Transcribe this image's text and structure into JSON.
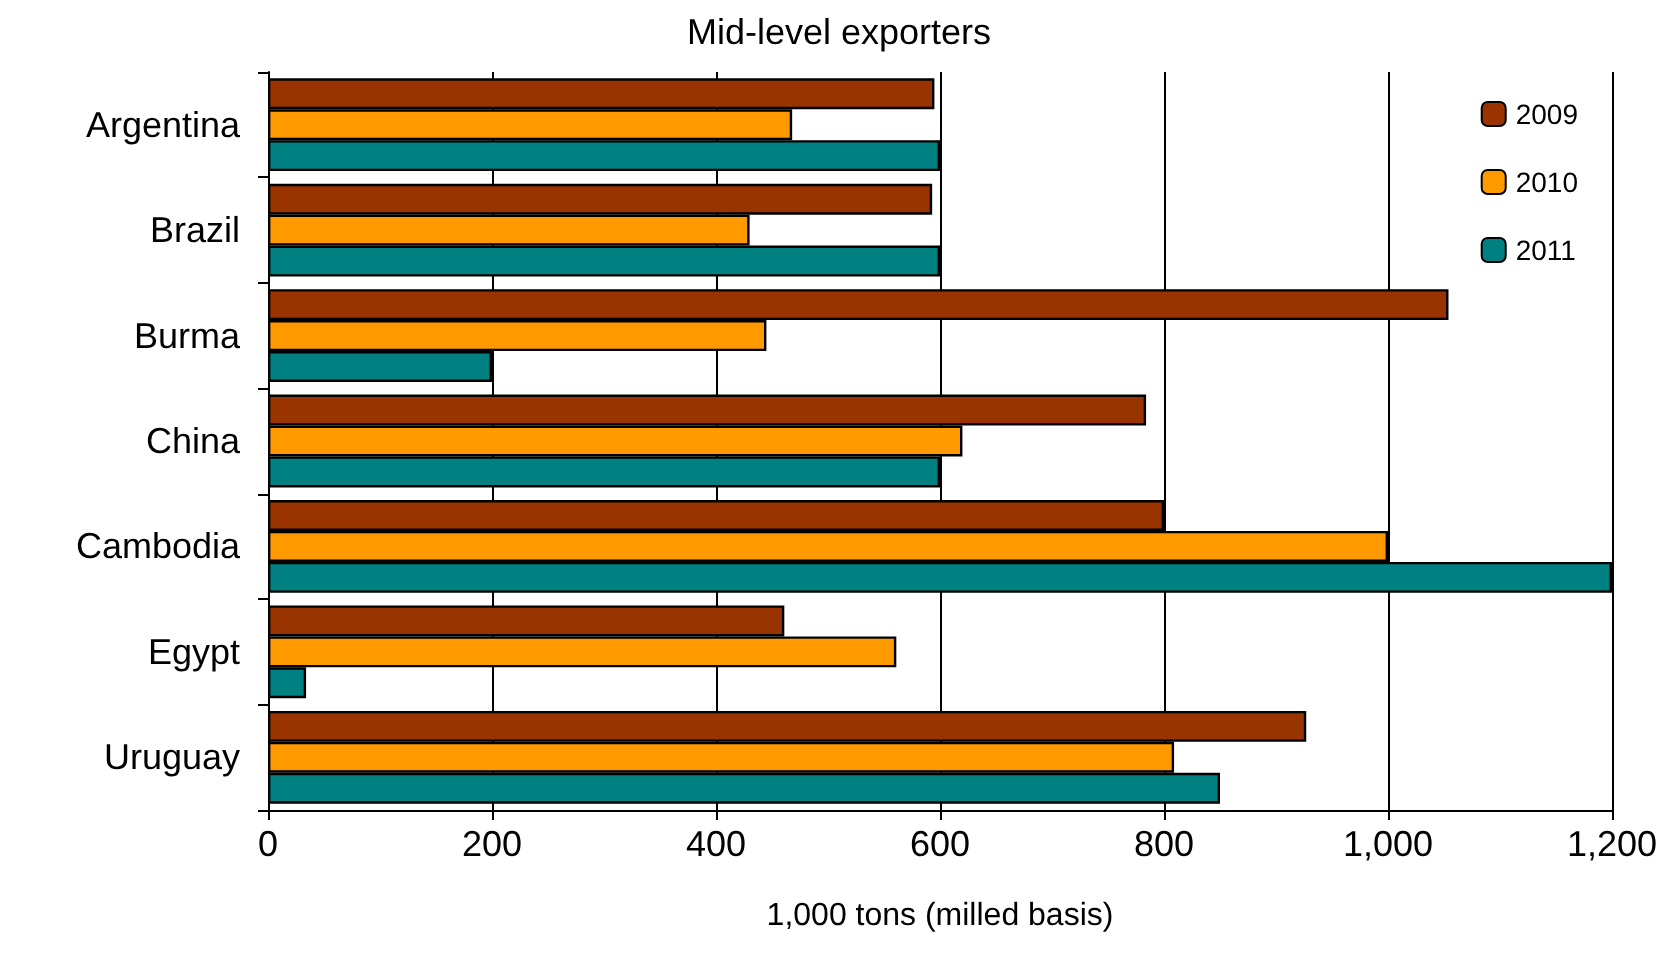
{
  "chart_data": {
    "type": "bar",
    "orientation": "horizontal",
    "title": "Mid-level exporters",
    "xlabel": "1,000 tons (milled basis)",
    "categories": [
      "Argentina",
      "Brazil",
      "Burma",
      "China",
      "Cambodia",
      "Egypt",
      "Uruguay"
    ],
    "series": [
      {
        "name": "2009",
        "color": "#993300",
        "values": [
          595,
          593,
          1054,
          784,
          800,
          461,
          927
        ]
      },
      {
        "name": "2010",
        "color": "#ff9900",
        "values": [
          468,
          430,
          445,
          620,
          1000,
          561,
          809
        ]
      },
      {
        "name": "2011",
        "color": "#008080",
        "values": [
          600,
          600,
          200,
          600,
          1200,
          34,
          850
        ]
      }
    ],
    "xlim": [
      0,
      1200
    ],
    "xticks": [
      0,
      200,
      400,
      600,
      800,
      {
        "value": 1000,
        "label": "1,000"
      },
      {
        "value": 1200,
        "label": "1,200"
      }
    ],
    "grid": "x",
    "legend": "top right"
  }
}
